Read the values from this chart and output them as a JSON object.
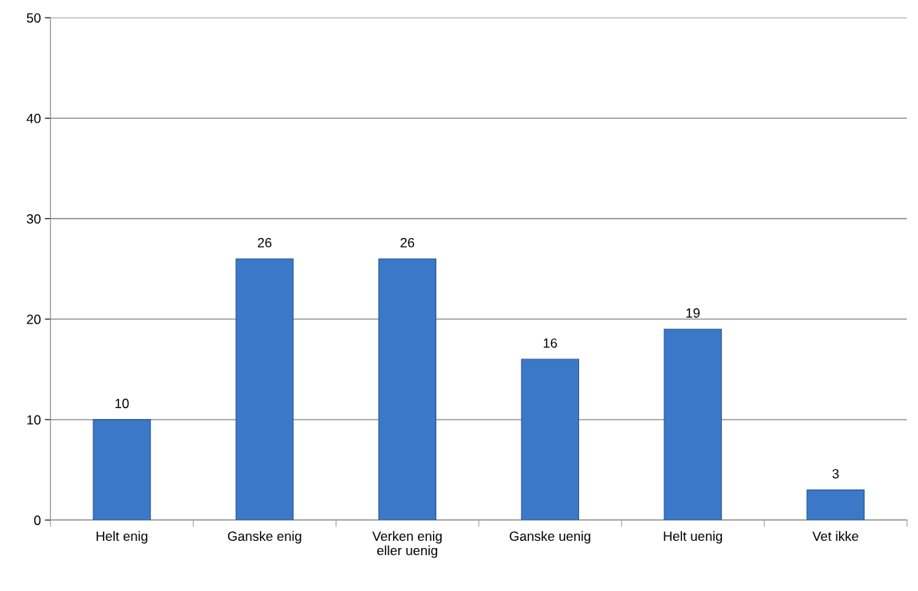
{
  "chart_data": {
    "type": "bar",
    "categories": [
      "Helt enig",
      "Ganske enig",
      "Verken enig\neller uenig",
      "Ganske uenig",
      "Helt uenig",
      "Vet ikke"
    ],
    "values": [
      10,
      26,
      26,
      16,
      19,
      3
    ],
    "color": "#3b78c8",
    "ylim": [
      0,
      50
    ],
    "yticks": [
      0,
      10,
      20,
      30,
      40,
      50
    ],
    "grid": "y",
    "data_labels": true,
    "legend": false
  }
}
